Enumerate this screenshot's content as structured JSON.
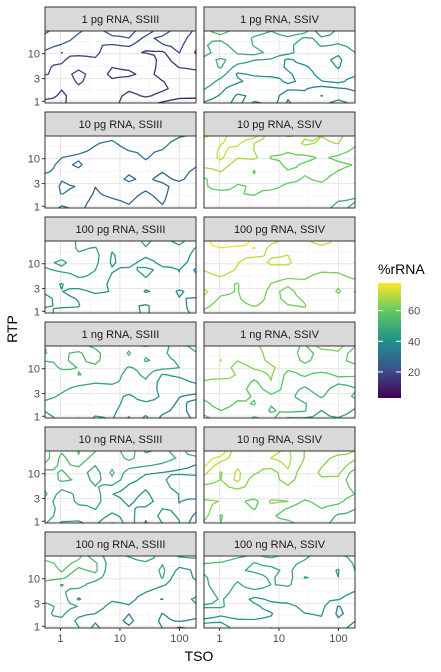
{
  "chart_data": {
    "type": "contour",
    "xlabel": "TSO",
    "ylabel": "RTP",
    "x_scale": "log10",
    "y_scale": "log10",
    "x_ticks": [
      1,
      10,
      100
    ],
    "x_tick_labels": [
      "1",
      "10",
      "100"
    ],
    "y_ticks": [
      1,
      3,
      10
    ],
    "y_tick_labels": [
      "1",
      "3",
      "10"
    ],
    "xlim": [
      0.55,
      190
    ],
    "ylim": [
      0.92,
      30
    ],
    "legend": {
      "title": "%rRNA",
      "placement": "right",
      "range": [
        3,
        78
      ],
      "ticks": [
        20,
        40,
        60
      ],
      "colors": [
        "#440154",
        "#3b528b",
        "#21918c",
        "#5ec962",
        "#fde725"
      ]
    },
    "grid": true,
    "facets": [
      {
        "label": "1 pg RNA, SSIII",
        "levels": [
          10,
          15,
          20,
          25
        ]
      },
      {
        "label": "1 pg RNA, SSIV",
        "levels": [
          30,
          35,
          40,
          45,
          50,
          55
        ]
      },
      {
        "label": "10 pg RNA, SSIII",
        "levels": [
          28,
          32
        ]
      },
      {
        "label": "10 pg RNA, SSIV",
        "levels": [
          50,
          60,
          68,
          72
        ]
      },
      {
        "label": "100 pg RNA, SSIII",
        "levels": [
          38,
          42,
          46
        ]
      },
      {
        "label": "100 pg RNA, SSIV",
        "levels": [
          55,
          62,
          70,
          76
        ]
      },
      {
        "label": "1 ng RNA, SSIII",
        "levels": [
          35,
          42,
          48,
          54,
          58
        ]
      },
      {
        "label": "1 ng RNA, SSIV",
        "levels": [
          45,
          52,
          58,
          64,
          70
        ]
      },
      {
        "label": "10 ng RNA, SSIII",
        "levels": [
          35,
          42,
          48,
          54,
          58
        ]
      },
      {
        "label": "10 ng RNA, SSIV",
        "levels": [
          50,
          58,
          64,
          70,
          74
        ]
      },
      {
        "label": "100 ng RNA, SSIII",
        "levels": [
          30,
          36,
          42,
          48,
          54,
          58
        ]
      },
      {
        "label": "100 ng RNA, SSIV",
        "levels": [
          35,
          42,
          48,
          54
        ]
      }
    ]
  }
}
